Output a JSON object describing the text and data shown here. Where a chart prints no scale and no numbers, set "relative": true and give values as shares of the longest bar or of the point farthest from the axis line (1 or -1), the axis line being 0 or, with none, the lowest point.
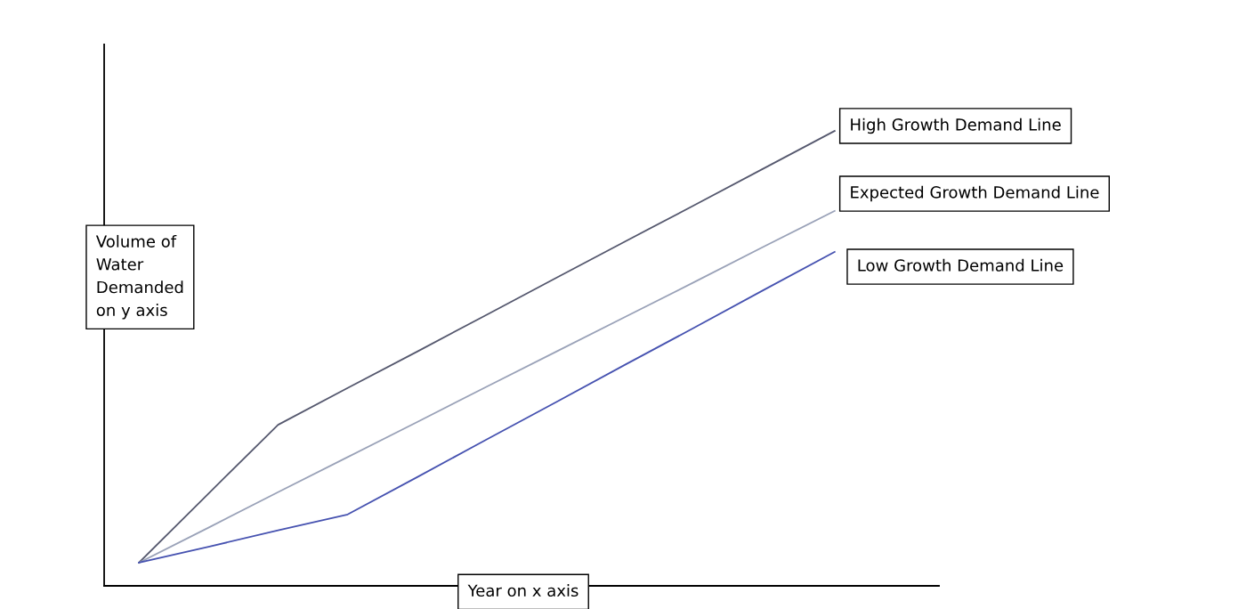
{
  "chart_data": {
    "type": "line",
    "relative": true,
    "xlabel": "Year on x axis",
    "ylabel": "Volume of\nWater\nDemanded\non y axis",
    "tick_labels": false,
    "grid": false,
    "legend": false,
    "marker": "none",
    "line_style": "solid",
    "categories": [
      null,
      null,
      null,
      null,
      null,
      null,
      null,
      null,
      null,
      null,
      null
    ],
    "series": [
      {
        "name": "High Growth Demand Line",
        "color": "#55586e",
        "values": [
          0.051,
          0.203,
          0.354,
          0.435,
          0.515,
          0.596,
          0.677,
          0.758,
          0.838,
          0.919,
          1
        ]
      },
      {
        "name": "Expected Growth Demand Line",
        "color": "#9aa2b8",
        "values": [
          0.051,
          0.128,
          0.206,
          0.283,
          0.36,
          0.438,
          0.515,
          0.592,
          0.669,
          0.747,
          0.824
        ]
      },
      {
        "name": "Low Growth Demand Line",
        "color": "#4652b0",
        "values": [
          0.051,
          0.086,
          0.122,
          0.157,
          0.239,
          0.322,
          0.404,
          0.487,
          0.569,
          0.652,
          0.734
        ]
      }
    ]
  }
}
